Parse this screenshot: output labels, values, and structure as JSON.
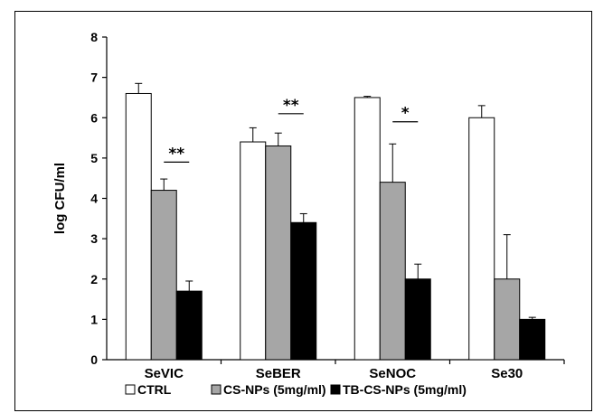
{
  "chart_data": {
    "type": "bar",
    "title": "",
    "xlabel": "",
    "ylabel": "log CFU/ml",
    "ylim": [
      0,
      8
    ],
    "yticks": [
      "0",
      "1",
      "2",
      "3",
      "4",
      "5",
      "6",
      "7",
      "8"
    ],
    "categories": [
      "SeVIC",
      "SeBER",
      "SeNOC",
      "Se30"
    ],
    "series": [
      {
        "name": "CTRL",
        "color": "#ffffff",
        "values": [
          6.6,
          5.4,
          6.5,
          6.0
        ],
        "errors": [
          0.25,
          0.35,
          0.03,
          0.3
        ]
      },
      {
        "name": "CS-NPs (5mg/ml)",
        "color": "#a6a6a6",
        "values": [
          4.2,
          5.3,
          4.4,
          2.0
        ],
        "errors": [
          0.28,
          0.32,
          0.95,
          1.1
        ]
      },
      {
        "name": "TB-CS-NPs (5mg/ml)",
        "color": "#000000",
        "values": [
          1.7,
          3.4,
          2.0,
          1.0
        ],
        "errors": [
          0.25,
          0.22,
          0.37,
          0.05
        ]
      }
    ],
    "annotations": [
      {
        "category": 0,
        "from_series": 1,
        "to_series": 2,
        "y": 4.9,
        "label": "**"
      },
      {
        "category": 1,
        "from_series": 1,
        "to_series": 2,
        "y": 6.1,
        "label": "**"
      },
      {
        "category": 2,
        "from_series": 1,
        "to_series": 2,
        "y": 5.9,
        "label": "*"
      }
    ],
    "grid": false,
    "legend_position": "bottom"
  }
}
